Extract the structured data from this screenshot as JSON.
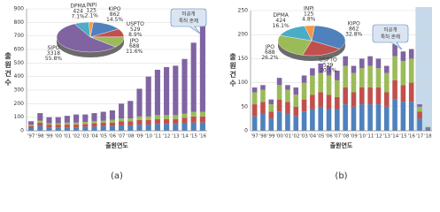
{
  "chart_data": [
    {
      "type": "bar",
      "stacked": true,
      "caption": "(a)",
      "y_label": "출원건수",
      "x_label": "출원연도",
      "categories": [
        "'97",
        "'98",
        "'99",
        "'00",
        "'01",
        "'02",
        "'03",
        "'04",
        "'05",
        "'06",
        "'07",
        "'08",
        "'09",
        "'10",
        "'11",
        "'12",
        "'13",
        "'14",
        "'15",
        "'16"
      ],
      "series": [
        {
          "color": "#4f81bd",
          "values": [
            20,
            35,
            25,
            25,
            25,
            25,
            30,
            30,
            35,
            35,
            40,
            40,
            45,
            45,
            50,
            50,
            50,
            55,
            60,
            60
          ]
        },
        {
          "color": "#c0504d",
          "values": [
            15,
            25,
            20,
            20,
            20,
            20,
            20,
            25,
            25,
            25,
            30,
            30,
            35,
            35,
            35,
            35,
            35,
            40,
            45,
            45
          ]
        },
        {
          "color": "#9bbb59",
          "values": [
            10,
            15,
            10,
            10,
            15,
            15,
            15,
            15,
            15,
            20,
            20,
            20,
            25,
            25,
            30,
            30,
            30,
            30,
            35,
            35
          ]
        },
        {
          "color": "#8064a2",
          "values": [
            25,
            55,
            45,
            45,
            50,
            60,
            55,
            60,
            65,
            70,
            110,
            130,
            205,
            295,
            335,
            355,
            365,
            405,
            510,
            640
          ]
        }
      ],
      "ylim": [
        0,
        900
      ],
      "yticks": [
        0,
        100,
        200,
        300,
        400,
        500,
        600,
        700,
        800,
        900
      ],
      "grid": true,
      "annotation": [
        "미공개",
        "특허 존재"
      ],
      "pie": {
        "labels": [
          "KIPO",
          "USPTO",
          "JPO",
          "SIPO",
          "DPMA",
          "INPI"
        ],
        "counts": [
          862,
          529,
          688,
          3318,
          424,
          125
        ],
        "values": [
          14.5,
          8.9,
          11.6,
          55.8,
          7.1,
          2.1
        ],
        "value_labels": [
          "14.5%",
          "8.9%",
          "11.6%",
          "55.8%",
          "7.1%",
          "2.1%"
        ],
        "colors": [
          "#4f81bd",
          "#c0504d",
          "#9bbb59",
          "#8064a2",
          "#4bacc6",
          "#f79646"
        ]
      }
    },
    {
      "type": "bar",
      "stacked": true,
      "caption": "(b)",
      "y_label": "출원건수",
      "x_label": "출원연도",
      "categories": [
        "'97",
        "'98",
        "'99",
        "'00",
        "'01",
        "'02",
        "'03",
        "'04",
        "'05",
        "'06",
        "'07",
        "'08",
        "'09",
        "'10",
        "'11",
        "'12",
        "'13",
        "'14",
        "'15",
        "'16",
        "'17",
        "'18"
      ],
      "series": [
        {
          "color": "#4f81bd",
          "values": [
            30,
            35,
            25,
            40,
            35,
            30,
            40,
            45,
            50,
            45,
            45,
            55,
            50,
            55,
            55,
            55,
            50,
            65,
            60,
            60,
            25,
            5
          ]
        },
        {
          "color": "#c0504d",
          "values": [
            25,
            25,
            15,
            25,
            25,
            20,
            25,
            30,
            30,
            30,
            25,
            35,
            30,
            35,
            35,
            35,
            30,
            40,
            35,
            40,
            15,
            2
          ]
        },
        {
          "color": "#9bbb59",
          "values": [
            25,
            25,
            15,
            30,
            25,
            25,
            35,
            40,
            40,
            40,
            35,
            45,
            40,
            40,
            45,
            40,
            40,
            50,
            50,
            50,
            10,
            1
          ]
        },
        {
          "color": "#8064a2",
          "values": [
            10,
            10,
            10,
            15,
            10,
            15,
            15,
            15,
            20,
            20,
            20,
            20,
            15,
            20,
            20,
            20,
            15,
            25,
            20,
            20,
            5,
            0
          ]
        }
      ],
      "ylim": [
        0,
        250
      ],
      "yticks": [
        0,
        50,
        100,
        150,
        200,
        250
      ],
      "grid": true,
      "shaded_span": [
        20,
        21
      ],
      "annotation": [
        "미공개",
        "특허 존재"
      ],
      "pie": {
        "labels": [
          "KIPO",
          "USPTO",
          "JPO",
          "DPMA",
          "INPI"
        ],
        "counts": [
          862,
          529,
          688,
          424,
          125
        ],
        "values": [
          32.8,
          20.1,
          26.2,
          16.1,
          4.8
        ],
        "value_labels": [
          "32.8%",
          "20.1%",
          "26.2%",
          "16.1%",
          "4.8%"
        ],
        "colors": [
          "#4f81bd",
          "#c0504d",
          "#9bbb59",
          "#4bacc6",
          "#f79646"
        ]
      }
    }
  ]
}
